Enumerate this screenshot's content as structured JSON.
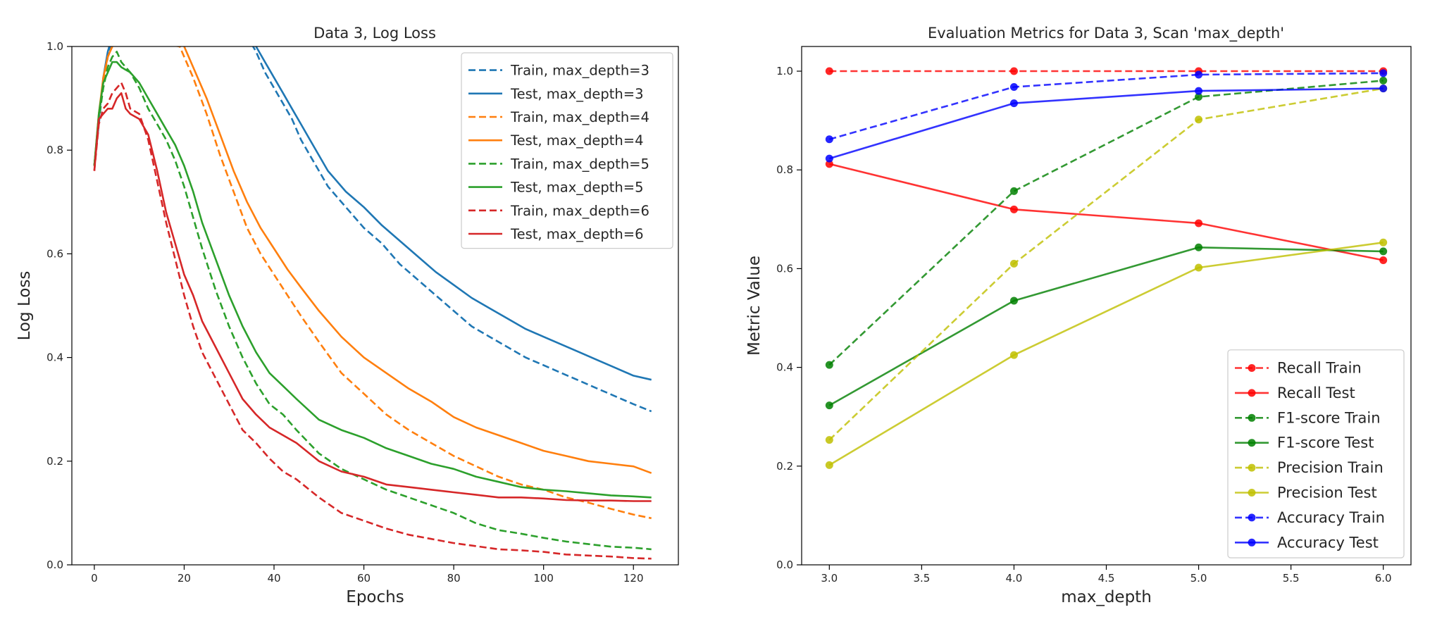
{
  "chart_data": [
    {
      "type": "line",
      "title": "Data 3, Log Loss",
      "xlabel": "Epochs",
      "ylabel": "Log Loss",
      "xlim": [
        -5,
        130
      ],
      "ylim": [
        0,
        1.0
      ],
      "xticks": [
        "0",
        "20",
        "40",
        "60",
        "80",
        "100",
        "120"
      ],
      "yticks": [
        "0.0",
        "0.2",
        "0.4",
        "0.6",
        "0.8",
        "1.0"
      ],
      "legend_position": "top-right",
      "series": [
        {
          "name": "Train, max_depth=3",
          "color": "#1f77b4",
          "dash": true,
          "x": [
            0,
            1,
            2,
            3,
            4,
            34,
            36,
            38,
            40,
            42,
            44,
            46,
            48,
            50,
            52,
            56,
            60,
            64,
            68,
            72,
            76,
            80,
            84,
            88,
            92,
            96,
            100,
            104,
            108,
            112,
            116,
            120,
            124
          ],
          "y": [
            0.77,
            0.85,
            0.93,
            0.98,
            1.02,
            1.02,
            0.99,
            0.95,
            0.92,
            0.89,
            0.86,
            0.82,
            0.79,
            0.76,
            0.73,
            0.69,
            0.65,
            0.62,
            0.58,
            0.55,
            0.52,
            0.49,
            0.46,
            0.44,
            0.42,
            0.4,
            0.385,
            0.37,
            0.355,
            0.34,
            0.325,
            0.31,
            0.296
          ]
        },
        {
          "name": "Test, max_depth=3",
          "color": "#1f77b4",
          "dash": false,
          "x": [
            0,
            1,
            2,
            3,
            4,
            34,
            36,
            38,
            40,
            42,
            44,
            46,
            48,
            50,
            52,
            56,
            60,
            64,
            68,
            72,
            76,
            80,
            84,
            88,
            92,
            96,
            100,
            104,
            108,
            112,
            116,
            120,
            124
          ],
          "y": [
            0.77,
            0.86,
            0.94,
            0.99,
            1.02,
            1.02,
            1.0,
            0.97,
            0.94,
            0.91,
            0.88,
            0.85,
            0.82,
            0.79,
            0.76,
            0.72,
            0.69,
            0.655,
            0.625,
            0.595,
            0.565,
            0.54,
            0.515,
            0.495,
            0.475,
            0.455,
            0.44,
            0.425,
            0.41,
            0.395,
            0.38,
            0.365,
            0.357
          ]
        },
        {
          "name": "Train, max_depth=4",
          "color": "#ff7f0e",
          "dash": true,
          "x": [
            0,
            1,
            2,
            3,
            4,
            5,
            19,
            22,
            25,
            28,
            31,
            34,
            37,
            40,
            43,
            46,
            50,
            55,
            60,
            65,
            70,
            75,
            80,
            85,
            90,
            95,
            100,
            105,
            110,
            115,
            120,
            124
          ],
          "y": [
            0.77,
            0.86,
            0.93,
            0.98,
            1.0,
            1.02,
            1.0,
            0.94,
            0.87,
            0.79,
            0.72,
            0.65,
            0.6,
            0.56,
            0.52,
            0.48,
            0.43,
            0.37,
            0.33,
            0.29,
            0.26,
            0.235,
            0.21,
            0.19,
            0.17,
            0.155,
            0.145,
            0.13,
            0.12,
            0.108,
            0.097,
            0.09
          ]
        },
        {
          "name": "Test, max_depth=4",
          "color": "#ff7f0e",
          "dash": false,
          "x": [
            0,
            1,
            2,
            3,
            4,
            5,
            19,
            22,
            25,
            28,
            31,
            34,
            37,
            40,
            43,
            46,
            50,
            55,
            60,
            65,
            70,
            75,
            80,
            85,
            90,
            95,
            100,
            105,
            110,
            115,
            120,
            124
          ],
          "y": [
            0.77,
            0.87,
            0.94,
            0.98,
            1.0,
            1.02,
            1.02,
            0.96,
            0.9,
            0.83,
            0.76,
            0.7,
            0.65,
            0.61,
            0.57,
            0.535,
            0.49,
            0.44,
            0.4,
            0.37,
            0.34,
            0.315,
            0.285,
            0.265,
            0.25,
            0.235,
            0.22,
            0.21,
            0.2,
            0.195,
            0.19,
            0.177
          ]
        },
        {
          "name": "Train, max_depth=5",
          "color": "#2ca02c",
          "dash": true,
          "x": [
            0,
            1,
            2,
            3,
            4,
            5,
            6,
            7,
            8,
            10,
            12,
            14,
            16,
            18,
            20,
            22,
            24,
            27,
            30,
            33,
            36,
            39,
            42,
            45,
            50,
            55,
            60,
            65,
            70,
            75,
            80,
            85,
            90,
            95,
            100,
            105,
            110,
            115,
            120,
            124
          ],
          "y": [
            0.77,
            0.86,
            0.92,
            0.96,
            0.98,
            0.99,
            0.97,
            0.96,
            0.95,
            0.92,
            0.88,
            0.85,
            0.82,
            0.78,
            0.73,
            0.67,
            0.61,
            0.53,
            0.46,
            0.4,
            0.35,
            0.31,
            0.29,
            0.26,
            0.215,
            0.185,
            0.165,
            0.145,
            0.13,
            0.115,
            0.1,
            0.08,
            0.067,
            0.06,
            0.052,
            0.045,
            0.04,
            0.035,
            0.033,
            0.03
          ]
        },
        {
          "name": "Test, max_depth=5",
          "color": "#2ca02c",
          "dash": false,
          "x": [
            0,
            1,
            2,
            3,
            4,
            5,
            6,
            7,
            8,
            10,
            12,
            14,
            16,
            18,
            20,
            22,
            24,
            27,
            30,
            33,
            36,
            39,
            42,
            45,
            50,
            55,
            60,
            65,
            70,
            75,
            80,
            85,
            90,
            95,
            100,
            105,
            110,
            115,
            120,
            124
          ],
          "y": [
            0.77,
            0.87,
            0.93,
            0.95,
            0.97,
            0.97,
            0.96,
            0.955,
            0.95,
            0.93,
            0.9,
            0.87,
            0.84,
            0.81,
            0.77,
            0.72,
            0.66,
            0.59,
            0.52,
            0.46,
            0.41,
            0.37,
            0.345,
            0.32,
            0.28,
            0.26,
            0.245,
            0.225,
            0.21,
            0.195,
            0.185,
            0.17,
            0.16,
            0.15,
            0.145,
            0.142,
            0.138,
            0.134,
            0.132,
            0.13
          ]
        },
        {
          "name": "Train, max_depth=6",
          "color": "#d62728",
          "dash": true,
          "x": [
            0,
            1,
            2,
            3,
            4,
            5,
            6,
            7,
            8,
            10,
            12,
            14,
            16,
            18,
            20,
            22,
            24,
            27,
            30,
            33,
            36,
            39,
            42,
            45,
            50,
            55,
            60,
            65,
            70,
            75,
            80,
            85,
            90,
            95,
            100,
            105,
            110,
            115,
            120,
            124
          ],
          "y": [
            0.76,
            0.85,
            0.88,
            0.89,
            0.91,
            0.92,
            0.93,
            0.91,
            0.88,
            0.87,
            0.82,
            0.74,
            0.66,
            0.59,
            0.52,
            0.46,
            0.41,
            0.36,
            0.31,
            0.26,
            0.235,
            0.205,
            0.18,
            0.165,
            0.13,
            0.1,
            0.085,
            0.07,
            0.058,
            0.05,
            0.042,
            0.036,
            0.03,
            0.028,
            0.025,
            0.02,
            0.018,
            0.016,
            0.013,
            0.012
          ]
        },
        {
          "name": "Test, max_depth=6",
          "color": "#d62728",
          "dash": false,
          "x": [
            0,
            1,
            2,
            3,
            4,
            5,
            6,
            7,
            8,
            10,
            12,
            14,
            16,
            18,
            20,
            22,
            24,
            27,
            30,
            33,
            36,
            39,
            42,
            45,
            50,
            55,
            60,
            65,
            70,
            75,
            80,
            85,
            90,
            95,
            100,
            105,
            110,
            115,
            120,
            124
          ],
          "y": [
            0.76,
            0.86,
            0.87,
            0.88,
            0.88,
            0.9,
            0.91,
            0.88,
            0.87,
            0.86,
            0.83,
            0.76,
            0.68,
            0.62,
            0.56,
            0.52,
            0.47,
            0.42,
            0.37,
            0.32,
            0.29,
            0.265,
            0.25,
            0.235,
            0.2,
            0.18,
            0.17,
            0.155,
            0.15,
            0.145,
            0.14,
            0.135,
            0.13,
            0.13,
            0.128,
            0.125,
            0.124,
            0.124,
            0.123,
            0.123
          ]
        }
      ]
    },
    {
      "type": "line",
      "title": "Evaluation Metrics for Data 3, Scan 'max_depth'",
      "xlabel": "max_depth",
      "ylabel": "Metric Value",
      "xlim": [
        2.85,
        6.15
      ],
      "ylim": [
        0,
        1.05
      ],
      "xticks": [
        "3.0",
        "3.5",
        "4.0",
        "4.5",
        "5.0",
        "5.5",
        "6.0"
      ],
      "yticks": [
        "0.0",
        "0.2",
        "0.4",
        "0.6",
        "0.8",
        "1.0"
      ],
      "legend_position": "lower-right",
      "x": [
        3.0,
        4.0,
        5.0,
        6.0
      ],
      "series": [
        {
          "name": "Recall Train",
          "color": "#ff0000",
          "dash": true,
          "values": [
            1.0,
            1.0,
            1.0,
            1.0
          ]
        },
        {
          "name": "Recall Test",
          "color": "#ff0000",
          "dash": false,
          "values": [
            0.812,
            0.72,
            0.692,
            0.617
          ]
        },
        {
          "name": "F1-score Train",
          "color": "#008000",
          "dash": true,
          "values": [
            0.405,
            0.757,
            0.948,
            0.981
          ]
        },
        {
          "name": "F1-score Test",
          "color": "#008000",
          "dash": false,
          "values": [
            0.323,
            0.535,
            0.643,
            0.635
          ]
        },
        {
          "name": "Precision Train",
          "color": "#bfbf00",
          "dash": true,
          "values": [
            0.253,
            0.61,
            0.902,
            0.965
          ]
        },
        {
          "name": "Precision Test",
          "color": "#bfbf00",
          "dash": false,
          "values": [
            0.202,
            0.425,
            0.602,
            0.653
          ]
        },
        {
          "name": "Accuracy Train",
          "color": "#0000ff",
          "dash": true,
          "values": [
            0.862,
            0.968,
            0.993,
            0.996
          ]
        },
        {
          "name": "Accuracy Test",
          "color": "#0000ff",
          "dash": false,
          "values": [
            0.823,
            0.935,
            0.96,
            0.965
          ]
        }
      ]
    }
  ]
}
